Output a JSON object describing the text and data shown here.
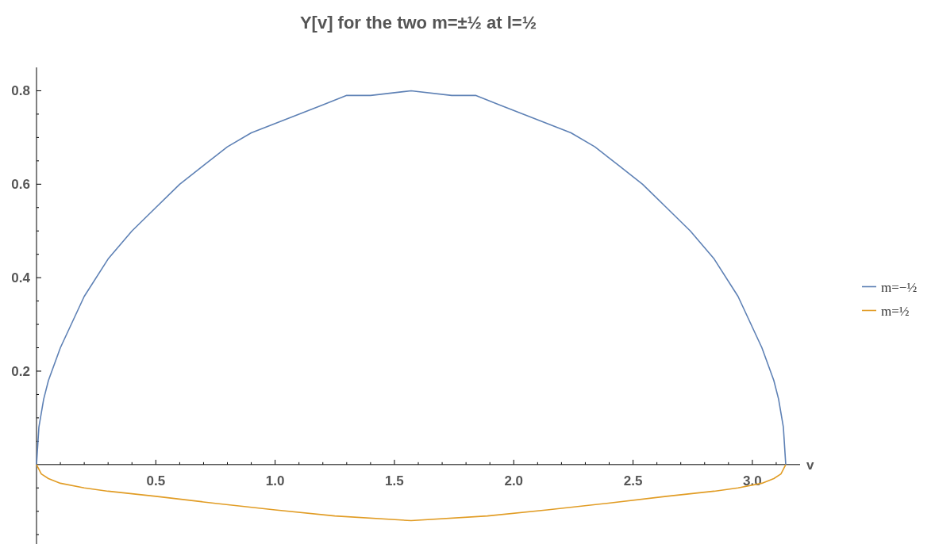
{
  "chart_data": {
    "type": "line",
    "title": "Y[v] for the two m=±½ at l=½",
    "xlabel": "v",
    "xlim": [
      0,
      3.2
    ],
    "ylim": [
      -0.17,
      0.85
    ],
    "xticks": [
      {
        "value": 0.1,
        "label": null
      },
      {
        "value": 0.2,
        "label": null
      },
      {
        "value": 0.3,
        "label": null
      },
      {
        "value": 0.4,
        "label": null
      },
      {
        "value": 0.5,
        "label": "0.5"
      },
      {
        "value": 0.6,
        "label": null
      },
      {
        "value": 0.7,
        "label": null
      },
      {
        "value": 0.8,
        "label": null
      },
      {
        "value": 0.9,
        "label": null
      },
      {
        "value": 1.0,
        "label": "1.0"
      },
      {
        "value": 1.1,
        "label": null
      },
      {
        "value": 1.2,
        "label": null
      },
      {
        "value": 1.3,
        "label": null
      },
      {
        "value": 1.4,
        "label": null
      },
      {
        "value": 1.5,
        "label": "1.5"
      },
      {
        "value": 1.6,
        "label": null
      },
      {
        "value": 1.7,
        "label": null
      },
      {
        "value": 1.8,
        "label": null
      },
      {
        "value": 1.9,
        "label": null
      },
      {
        "value": 2.0,
        "label": "2.0"
      },
      {
        "value": 2.1,
        "label": null
      },
      {
        "value": 2.2,
        "label": null
      },
      {
        "value": 2.3,
        "label": null
      },
      {
        "value": 2.4,
        "label": null
      },
      {
        "value": 2.5,
        "label": "2.5"
      },
      {
        "value": 2.6,
        "label": null
      },
      {
        "value": 2.7,
        "label": null
      },
      {
        "value": 2.8,
        "label": null
      },
      {
        "value": 2.9,
        "label": null
      },
      {
        "value": 3.0,
        "label": "3.0"
      },
      {
        "value": 3.1,
        "label": null
      }
    ],
    "yticks": [
      {
        "value": -0.15,
        "label": null
      },
      {
        "value": -0.1,
        "label": null
      },
      {
        "value": -0.05,
        "label": null
      },
      {
        "value": 0.05,
        "label": null
      },
      {
        "value": 0.1,
        "label": null
      },
      {
        "value": 0.15,
        "label": null
      },
      0.2,
      {
        "value": 0.25,
        "label": null
      },
      {
        "value": 0.3,
        "label": null
      },
      {
        "value": 0.35,
        "label": null
      },
      0.4,
      {
        "value": 0.45,
        "label": null
      },
      {
        "value": 0.5,
        "label": null
      },
      {
        "value": 0.55,
        "label": null
      },
      0.6,
      {
        "value": 0.65,
        "label": null
      },
      {
        "value": 0.7,
        "label": null
      },
      {
        "value": 0.75,
        "label": null
      },
      0.8
    ],
    "grid": false,
    "legend": "right",
    "series": [
      {
        "name": "m=−½",
        "color": "#5e81b5",
        "x": [
          0,
          0.01,
          0.03,
          0.05,
          0.1,
          0.2,
          0.3,
          0.4,
          0.5,
          0.6,
          0.7,
          0.8,
          0.9,
          1.0,
          1.1,
          1.2,
          1.3,
          1.4,
          1.57,
          1.74,
          1.84,
          1.94,
          2.04,
          2.14,
          2.24,
          2.34,
          2.44,
          2.54,
          2.64,
          2.74,
          2.84,
          2.94,
          3.04,
          3.09,
          3.11,
          3.13,
          3.14
        ],
        "values": [
          0,
          0.08,
          0.14,
          0.18,
          0.25,
          0.36,
          0.44,
          0.5,
          0.55,
          0.6,
          0.64,
          0.68,
          0.71,
          0.73,
          0.75,
          0.77,
          0.79,
          0.79,
          0.8,
          0.79,
          0.79,
          0.77,
          0.75,
          0.73,
          0.71,
          0.68,
          0.64,
          0.6,
          0.55,
          0.5,
          0.44,
          0.36,
          0.25,
          0.18,
          0.14,
          0.08,
          0
        ]
      },
      {
        "name": "m=½",
        "color": "#e19c24",
        "x": [
          0,
          0.02,
          0.05,
          0.1,
          0.2,
          0.3,
          0.5,
          0.75,
          1.0,
          1.25,
          1.57,
          1.89,
          2.14,
          2.39,
          2.64,
          2.84,
          2.94,
          3.04,
          3.09,
          3.12,
          3.14
        ],
        "values": [
          0,
          -0.02,
          -0.03,
          -0.04,
          -0.05,
          -0.057,
          -0.068,
          -0.083,
          -0.097,
          -0.11,
          -0.12,
          -0.11,
          -0.097,
          -0.083,
          -0.068,
          -0.057,
          -0.05,
          -0.04,
          -0.03,
          -0.02,
          0
        ]
      }
    ]
  }
}
